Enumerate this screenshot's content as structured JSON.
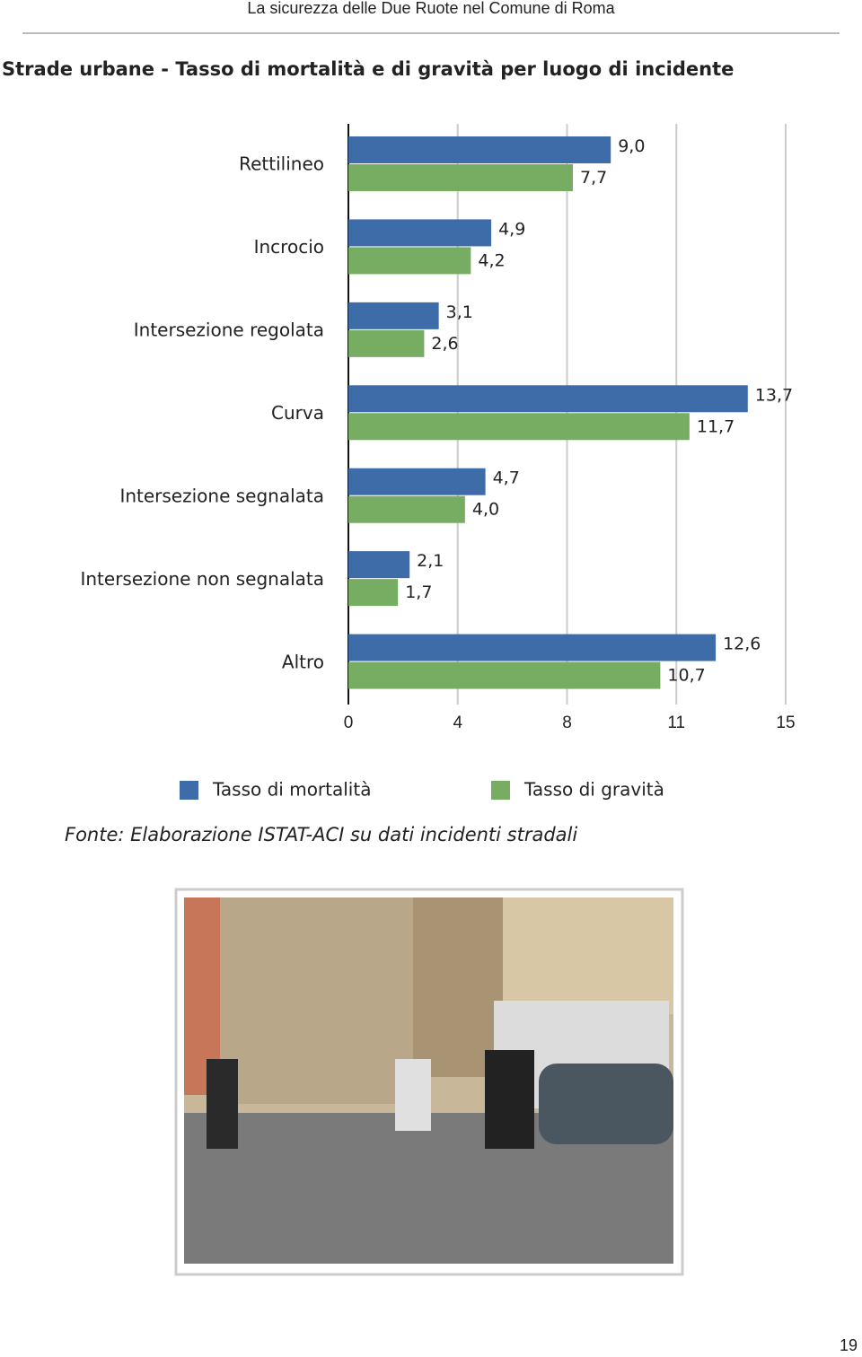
{
  "header": {
    "text": "La sicurezza delle Due Ruote nel Comune di Roma"
  },
  "chart_data": {
    "type": "bar",
    "orientation": "horizontal",
    "title": "Strade urbane - Tasso di mortalità e di gravità per luogo di incidente",
    "categories": [
      "Rettilineo",
      "Incrocio",
      "Intersezione regolata",
      "Curva",
      "Intersezione segnalata",
      "Intersezione non segnalata",
      "Altro"
    ],
    "series": [
      {
        "name": "Tasso di mortalità",
        "color": "#3d6ca8",
        "values": [
          9.0,
          4.9,
          3.1,
          13.7,
          4.7,
          2.1,
          12.6
        ],
        "value_labels": [
          "9,0",
          "4,9",
          "3,1",
          "13,7",
          "4,7",
          "2,1",
          "12,6"
        ]
      },
      {
        "name": "Tasso di gravità",
        "color": "#76ad63",
        "values": [
          7.7,
          4.2,
          2.6,
          11.7,
          4.0,
          1.7,
          10.7
        ],
        "value_labels": [
          "7,7",
          "4,2",
          "2,6",
          "11,7",
          "4,0",
          "1,7",
          "10,7"
        ]
      }
    ],
    "xlim": [
      0,
      15
    ],
    "xticks": [
      0,
      {
        "value": 3.75,
        "label": "4"
      },
      {
        "value": 7.5,
        "label": "8"
      },
      {
        "value": 11.25,
        "label": "11"
      },
      15
    ],
    "grid": true
  },
  "source": "Fonte: Elaborazione ISTAT-ACI su dati incidenti stradali",
  "page_number": "19"
}
